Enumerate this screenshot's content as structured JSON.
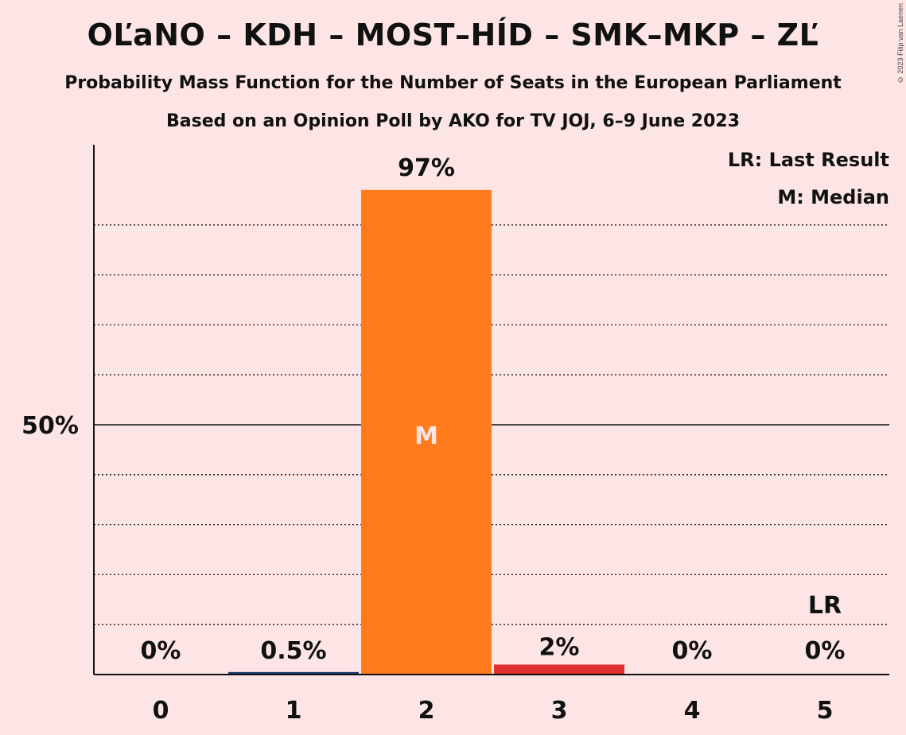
{
  "title": "OĽaNO – KDH – MOST–HÍD – SMK–MKP – ZĽ",
  "subtitle": "Probability Mass Function for the Number of Seats in the European Parliament",
  "subtitle2": "Based on an Opinion Poll by AKO for TV JOJ, 6–9 June 2023",
  "copyright": "© 2023 Filip van Laenen",
  "legend": {
    "last_result": "LR: Last Result",
    "median": "M: Median"
  },
  "chart_data": {
    "type": "bar",
    "categories": [
      "0",
      "1",
      "2",
      "3",
      "4",
      "5"
    ],
    "values": [
      0,
      0.5,
      97,
      2,
      0,
      0
    ],
    "value_labels": [
      "0%",
      "0.5%",
      "97%",
      "2%",
      "0%",
      "0%"
    ],
    "bar_colors": [
      "#1a3a6b",
      "#1a3a6b",
      "#ff7b1c",
      "#e03030",
      "#1a3a6b",
      "#1a3a6b"
    ],
    "ylim": [
      0,
      100
    ],
    "ytick_label": "50%",
    "ytick_value": 50,
    "gridlines": [
      10,
      20,
      30,
      40,
      60,
      70,
      80,
      90
    ],
    "median_index": 2,
    "median_marker": "M",
    "last_result_index": 5,
    "last_result_marker": "LR",
    "grid": true,
    "legend_position": "top-right"
  }
}
